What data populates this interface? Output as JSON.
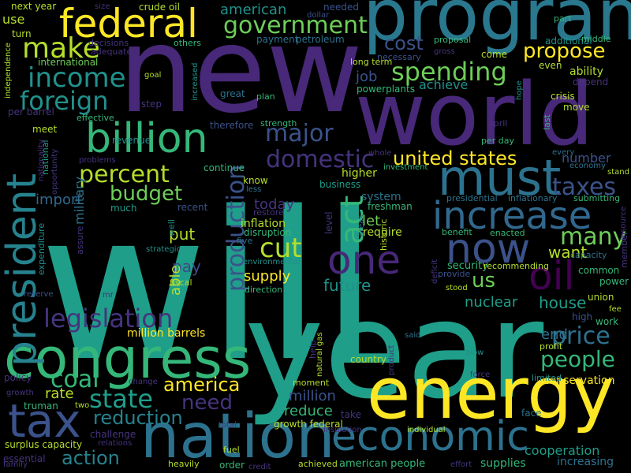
{
  "words": [
    {
      "text": "will",
      "color": "#1f9e89"
    },
    {
      "text": "year",
      "color": "#1f9e89"
    },
    {
      "text": "new",
      "color": "#482878"
    },
    {
      "text": "world",
      "color": "#482878"
    },
    {
      "text": "program",
      "color": "#2a788e"
    },
    {
      "text": "energy",
      "color": "#fde725"
    },
    {
      "text": "nation",
      "color": "#2c728e"
    },
    {
      "text": "congress",
      "color": "#35b779"
    },
    {
      "text": "tax",
      "color": "#3b528b"
    },
    {
      "text": "federal",
      "color": "#fde725"
    },
    {
      "text": "must",
      "color": "#2c728e"
    },
    {
      "text": "increase",
      "color": "#31688e"
    },
    {
      "text": "economic",
      "color": "#2c728e"
    },
    {
      "text": "president",
      "color": "#26828e"
    },
    {
      "text": "billion",
      "color": "#35b779"
    },
    {
      "text": "one",
      "color": "#482878"
    },
    {
      "text": "now",
      "color": "#3b528b"
    },
    {
      "text": "oil",
      "color": "#440154"
    },
    {
      "text": "government",
      "color": "#6ece58"
    },
    {
      "text": "make",
      "color": "#b5de2b"
    },
    {
      "text": "income",
      "color": "#21918c"
    },
    {
      "text": "foreign",
      "color": "#21918c"
    },
    {
      "text": "spending",
      "color": "#6ece58"
    },
    {
      "text": "cost",
      "color": "#3b528b"
    },
    {
      "text": "propose",
      "color": "#fde725"
    },
    {
      "text": "major",
      "color": "#3b528b"
    },
    {
      "text": "domestic",
      "color": "#46337e"
    },
    {
      "text": "united states",
      "color": "#fde725"
    },
    {
      "text": "taxes",
      "color": "#3b528b"
    },
    {
      "text": "percent",
      "color": "#b5de2b"
    },
    {
      "text": "budget",
      "color": "#6ece58"
    },
    {
      "text": "legislation",
      "color": "#46337e"
    },
    {
      "text": "production",
      "color": "#3b528b"
    },
    {
      "text": "act",
      "color": "#35b779"
    },
    {
      "text": "many",
      "color": "#6ece58"
    },
    {
      "text": "cut",
      "color": "#b5de2b"
    },
    {
      "text": "price",
      "color": "#2c728e"
    },
    {
      "text": "people",
      "color": "#35b779"
    },
    {
      "text": "state",
      "color": "#1f9e89"
    },
    {
      "text": "coal",
      "color": "#35b779"
    },
    {
      "text": "america",
      "color": "#fde725"
    },
    {
      "text": "reduction",
      "color": "#26828e"
    },
    {
      "text": "need",
      "color": "#46337e"
    },
    {
      "text": "action",
      "color": "#26828e"
    },
    {
      "text": "rate",
      "color": "#b5de2b"
    },
    {
      "text": "million",
      "color": "#3b528b"
    },
    {
      "text": "reduce",
      "color": "#35b779"
    },
    {
      "text": "put",
      "color": "#b5de2b"
    },
    {
      "text": "pay",
      "color": "#3e4989"
    },
    {
      "text": "supply",
      "color": "#fde725"
    },
    {
      "text": "us",
      "color": "#6ece58"
    },
    {
      "text": "future",
      "color": "#21918c"
    },
    {
      "text": "nuclear",
      "color": "#1f9e89"
    },
    {
      "text": "house",
      "color": "#1f9e89"
    },
    {
      "text": "end",
      "color": "#2c728e"
    },
    {
      "text": "want",
      "color": "#b5de2b"
    },
    {
      "text": "job",
      "color": "#3b528b"
    },
    {
      "text": "achieve",
      "color": "#21918c"
    },
    {
      "text": "cooperation",
      "color": "#1f9e89"
    },
    {
      "text": "american",
      "color": "#21918c"
    },
    {
      "text": "import",
      "color": "#31688e"
    },
    {
      "text": "military",
      "color": "#2c728e"
    },
    {
      "text": "today",
      "color": "#46337e"
    },
    {
      "text": "inflation",
      "color": "#b5de2b"
    },
    {
      "text": "let",
      "color": "#6ece58"
    },
    {
      "text": "able",
      "color": "#b5de2b"
    },
    {
      "text": "number",
      "color": "#3b528b"
    },
    {
      "text": "crisis",
      "color": "#b5de2b"
    },
    {
      "text": "ability",
      "color": "#b5de2b"
    },
    {
      "text": "increasing",
      "color": "#2c728e"
    },
    {
      "text": "conservation",
      "color": "#fde725"
    },
    {
      "text": "million barrels",
      "color": "#fde725"
    },
    {
      "text": "use",
      "color": "#b5de2b"
    },
    {
      "text": "next year",
      "color": "#b5de2b"
    },
    {
      "text": "turn",
      "color": "#b5de2b"
    },
    {
      "text": "international",
      "color": "#6ece58"
    },
    {
      "text": "crude oil",
      "color": "#b5de2b"
    },
    {
      "text": "dollar",
      "color": "#3b528b"
    },
    {
      "text": "needed",
      "color": "#3b528b"
    },
    {
      "text": "proposal",
      "color": "#35b779"
    },
    {
      "text": "additional",
      "color": "#21918c"
    },
    {
      "text": "part",
      "color": "#35b779"
    },
    {
      "text": "middle",
      "color": "#35b779"
    },
    {
      "text": "come",
      "color": "#b5de2b"
    },
    {
      "text": "long term",
      "color": "#b5de2b"
    },
    {
      "text": "necessary",
      "color": "#3b528b"
    },
    {
      "text": "payment",
      "color": "#2c728e"
    },
    {
      "text": "petroleum",
      "color": "#2c728e"
    },
    {
      "text": "decisions",
      "color": "#46337e"
    },
    {
      "text": "adequate",
      "color": "#46337e"
    },
    {
      "text": "others",
      "color": "#35b779"
    },
    {
      "text": "size",
      "color": "#46337e"
    },
    {
      "text": "gross",
      "color": "#46337e"
    },
    {
      "text": "powerplants",
      "color": "#35b779"
    },
    {
      "text": "goal",
      "color": "#b5de2b"
    },
    {
      "text": "increased",
      "color": "#21918c"
    },
    {
      "text": "even",
      "color": "#b5de2b"
    },
    {
      "text": "depend",
      "color": "#46337e"
    },
    {
      "text": "independence",
      "color": "#b5de2b"
    },
    {
      "text": "per barrel",
      "color": "#46337e"
    },
    {
      "text": "effective",
      "color": "#35b779"
    },
    {
      "text": "step",
      "color": "#46337e"
    },
    {
      "text": "great",
      "color": "#2c728e"
    },
    {
      "text": "plan",
      "color": "#35b779"
    },
    {
      "text": "hope",
      "color": "#21918c"
    },
    {
      "text": "last",
      "color": "#35b779"
    },
    {
      "text": "april",
      "color": "#46337e"
    },
    {
      "text": "per day",
      "color": "#35b779"
    },
    {
      "text": "move",
      "color": "#b5de2b"
    },
    {
      "text": "every",
      "color": "#2c728e"
    },
    {
      "text": "whole",
      "color": "#46337e"
    },
    {
      "text": "meet",
      "color": "#b5de2b"
    },
    {
      "text": "therefore",
      "color": "#3b528b"
    },
    {
      "text": "strength",
      "color": "#35b779"
    },
    {
      "text": "revenue",
      "color": "#21918c"
    },
    {
      "text": "national",
      "color": "#1f9e89"
    },
    {
      "text": "problems",
      "color": "#46337e"
    },
    {
      "text": "continue",
      "color": "#35b779"
    },
    {
      "text": "opportunity",
      "color": "#46337e"
    },
    {
      "text": "nationality",
      "color": "#46337e"
    },
    {
      "text": "economy",
      "color": "#2c728e"
    },
    {
      "text": "investment",
      "color": "#35b779"
    },
    {
      "text": "higher",
      "color": "#b5de2b"
    },
    {
      "text": "know",
      "color": "#b5de2b"
    },
    {
      "text": "stand",
      "color": "#b5de2b"
    },
    {
      "text": "business",
      "color": "#1f9e89"
    },
    {
      "text": "less",
      "color": "#2c728e"
    },
    {
      "text": "system",
      "color": "#2c728e"
    },
    {
      "text": "freshman",
      "color": "#35b779"
    },
    {
      "text": "presidential",
      "color": "#2c728e"
    },
    {
      "text": "inflationary",
      "color": "#2c728e"
    },
    {
      "text": "submitting",
      "color": "#35b779"
    },
    {
      "text": "much",
      "color": "#1f9e89"
    },
    {
      "text": "recent",
      "color": "#3b528b"
    },
    {
      "text": "restore",
      "color": "#46337e"
    },
    {
      "text": "level",
      "color": "#46337e"
    },
    {
      "text": "five",
      "color": "#2c728e"
    },
    {
      "text": "require",
      "color": "#b5de2b"
    },
    {
      "text": "historic",
      "color": "#b5de2b"
    },
    {
      "text": "disruption",
      "color": "#35b779"
    },
    {
      "text": "benefit",
      "color": "#35b779"
    },
    {
      "text": "enacted",
      "color": "#35b779"
    },
    {
      "text": "capacity",
      "color": "#2c728e"
    },
    {
      "text": "member",
      "color": "#46337e"
    },
    {
      "text": "resource",
      "color": "#46337e"
    },
    {
      "text": "well",
      "color": "#21918c"
    },
    {
      "text": "strategic",
      "color": "#21918c"
    },
    {
      "text": "assure",
      "color": "#46337e"
    },
    {
      "text": "expenditure",
      "color": "#21918c"
    },
    {
      "text": "environmental",
      "color": "#21918c"
    },
    {
      "text": "security",
      "color": "#35b779"
    },
    {
      "text": "recommending",
      "color": "#b5de2b"
    },
    {
      "text": "common",
      "color": "#35b779"
    },
    {
      "text": "deficit",
      "color": "#46337e"
    },
    {
      "text": "provide",
      "color": "#3b528b"
    },
    {
      "text": "fiscal",
      "color": "#b5de2b"
    },
    {
      "text": "direction",
      "color": "#35b779"
    },
    {
      "text": "power",
      "color": "#35b779"
    },
    {
      "text": "reserve",
      "color": "#3b528b"
    },
    {
      "text": "mr",
      "color": "#46337e"
    },
    {
      "text": "stood",
      "color": "#b5de2b"
    },
    {
      "text": "union",
      "color": "#b5de2b"
    },
    {
      "text": "fee",
      "color": "#b5de2b"
    },
    {
      "text": "high",
      "color": "#3b528b"
    },
    {
      "text": "work",
      "color": "#35b779"
    },
    {
      "text": "said",
      "color": "#2c728e"
    },
    {
      "text": "help",
      "color": "#46337e"
    },
    {
      "text": "natural gas",
      "color": "#b5de2b"
    },
    {
      "text": "areas",
      "color": "#2c728e"
    },
    {
      "text": "policy",
      "color": "#46337e"
    },
    {
      "text": "country",
      "color": "#b5de2b"
    },
    {
      "text": "profit",
      "color": "#b5de2b"
    },
    {
      "text": "slow",
      "color": "#21918c"
    },
    {
      "text": "product",
      "color": "#46337e"
    },
    {
      "text": "change",
      "color": "#46337e"
    },
    {
      "text": "force",
      "color": "#46337e"
    },
    {
      "text": "limited",
      "color": "#21918c"
    },
    {
      "text": "moment",
      "color": "#b5de2b"
    },
    {
      "text": "growth",
      "color": "#46337e"
    },
    {
      "text": "truman",
      "color": "#35b779"
    },
    {
      "text": "two",
      "color": "#b5de2b"
    },
    {
      "text": "face",
      "color": "#2c728e"
    },
    {
      "text": "take",
      "color": "#46337e"
    },
    {
      "text": "growth federal",
      "color": "#b5de2b"
    },
    {
      "text": "challenge",
      "color": "#46337e"
    },
    {
      "text": "relations",
      "color": "#46337e"
    },
    {
      "text": "surplus capacity",
      "color": "#b5de2b"
    },
    {
      "text": "total",
      "color": "#46337e"
    },
    {
      "text": "insulation",
      "color": "#46337e"
    },
    {
      "text": "individual",
      "color": "#b5de2b"
    },
    {
      "text": "essential",
      "color": "#46337e"
    },
    {
      "text": "fuel",
      "color": "#b5de2b"
    },
    {
      "text": "family",
      "color": "#46337e"
    },
    {
      "text": "heavily",
      "color": "#b5de2b"
    },
    {
      "text": "order",
      "color": "#35b779"
    },
    {
      "text": "credit",
      "color": "#46337e"
    },
    {
      "text": "achieved",
      "color": "#b5de2b"
    },
    {
      "text": "american people",
      "color": "#35b779"
    },
    {
      "text": "effort",
      "color": "#46337e"
    },
    {
      "text": "supplies",
      "color": "#35b779"
    }
  ]
}
